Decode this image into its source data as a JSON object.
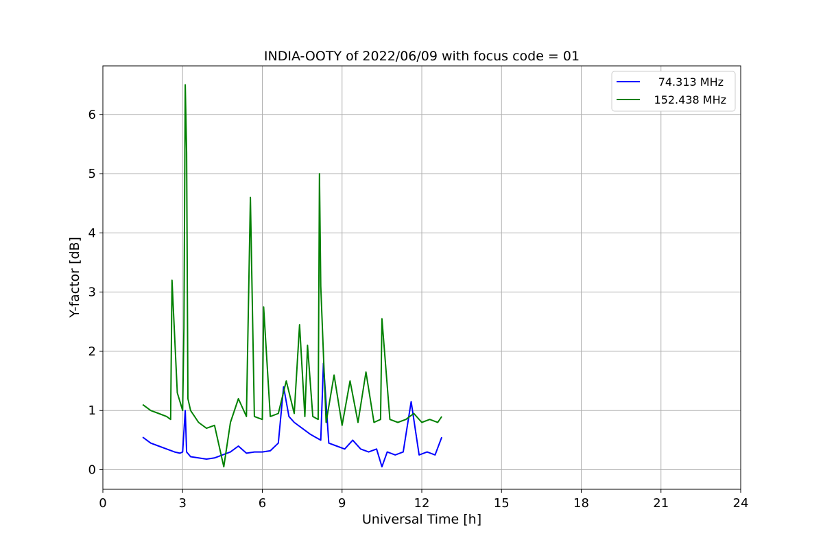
{
  "chart_data": {
    "type": "line",
    "title": "INDIA-OOTY of 2022/06/09 with focus code = 01",
    "xlabel": "Universal Time [h]",
    "ylabel": "Y-factor [dB]",
    "xlim": [
      0,
      24
    ],
    "ylim": [
      -0.33,
      6.82
    ],
    "xticks": [
      0,
      3,
      6,
      9,
      12,
      15,
      18,
      21,
      24
    ],
    "yticks": [
      0,
      1,
      2,
      3,
      4,
      5,
      6
    ],
    "grid": true,
    "legend_position": "top-right",
    "series": [
      {
        "name": "74.313 MHz",
        "color": "#0000ff",
        "x": [
          1.5,
          1.8,
          2.1,
          2.4,
          2.7,
          2.9,
          3.0,
          3.1,
          3.15,
          3.3,
          3.6,
          3.9,
          4.2,
          4.5,
          4.8,
          5.1,
          5.4,
          5.7,
          6.0,
          6.3,
          6.6,
          6.8,
          7.0,
          7.2,
          7.5,
          7.8,
          8.0,
          8.2,
          8.3,
          8.5,
          8.8,
          9.1,
          9.4,
          9.7,
          10.0,
          10.3,
          10.5,
          10.7,
          11.0,
          11.3,
          11.6,
          11.9,
          12.2,
          12.5,
          12.75
        ],
        "y": [
          0.55,
          0.45,
          0.4,
          0.35,
          0.3,
          0.28,
          0.3,
          1.0,
          0.3,
          0.22,
          0.2,
          0.18,
          0.2,
          0.25,
          0.3,
          0.4,
          0.28,
          0.3,
          0.3,
          0.32,
          0.45,
          1.4,
          0.9,
          0.8,
          0.7,
          0.6,
          0.55,
          0.5,
          1.8,
          0.45,
          0.4,
          0.35,
          0.5,
          0.35,
          0.3,
          0.35,
          0.05,
          0.3,
          0.25,
          0.3,
          1.15,
          0.25,
          0.3,
          0.25,
          0.55
        ]
      },
      {
        "name": "152.438 MHz",
        "color": "#008000",
        "x": [
          1.5,
          1.8,
          2.1,
          2.4,
          2.55,
          2.6,
          2.8,
          3.0,
          3.05,
          3.1,
          3.15,
          3.2,
          3.3,
          3.6,
          3.9,
          4.2,
          4.55,
          4.8,
          5.1,
          5.4,
          5.55,
          5.7,
          6.0,
          6.05,
          6.3,
          6.6,
          6.9,
          7.2,
          7.4,
          7.6,
          7.7,
          7.9,
          8.1,
          8.15,
          8.2,
          8.4,
          8.7,
          9.0,
          9.3,
          9.6,
          9.9,
          10.2,
          10.45,
          10.5,
          10.8,
          11.1,
          11.4,
          11.7,
          12.0,
          12.3,
          12.6,
          12.75
        ],
        "y": [
          1.1,
          1.0,
          0.95,
          0.9,
          0.85,
          3.2,
          1.3,
          1.0,
          2.4,
          6.5,
          5.35,
          1.2,
          1.0,
          0.8,
          0.7,
          0.75,
          0.05,
          0.8,
          1.2,
          0.9,
          4.6,
          0.9,
          0.85,
          2.75,
          0.9,
          0.95,
          1.5,
          0.95,
          2.45,
          0.9,
          2.1,
          0.9,
          0.85,
          5.0,
          3.1,
          0.8,
          1.6,
          0.75,
          1.5,
          0.8,
          1.65,
          0.8,
          0.85,
          2.55,
          0.85,
          0.8,
          0.85,
          0.95,
          0.8,
          0.85,
          0.8,
          0.9
        ]
      }
    ]
  }
}
